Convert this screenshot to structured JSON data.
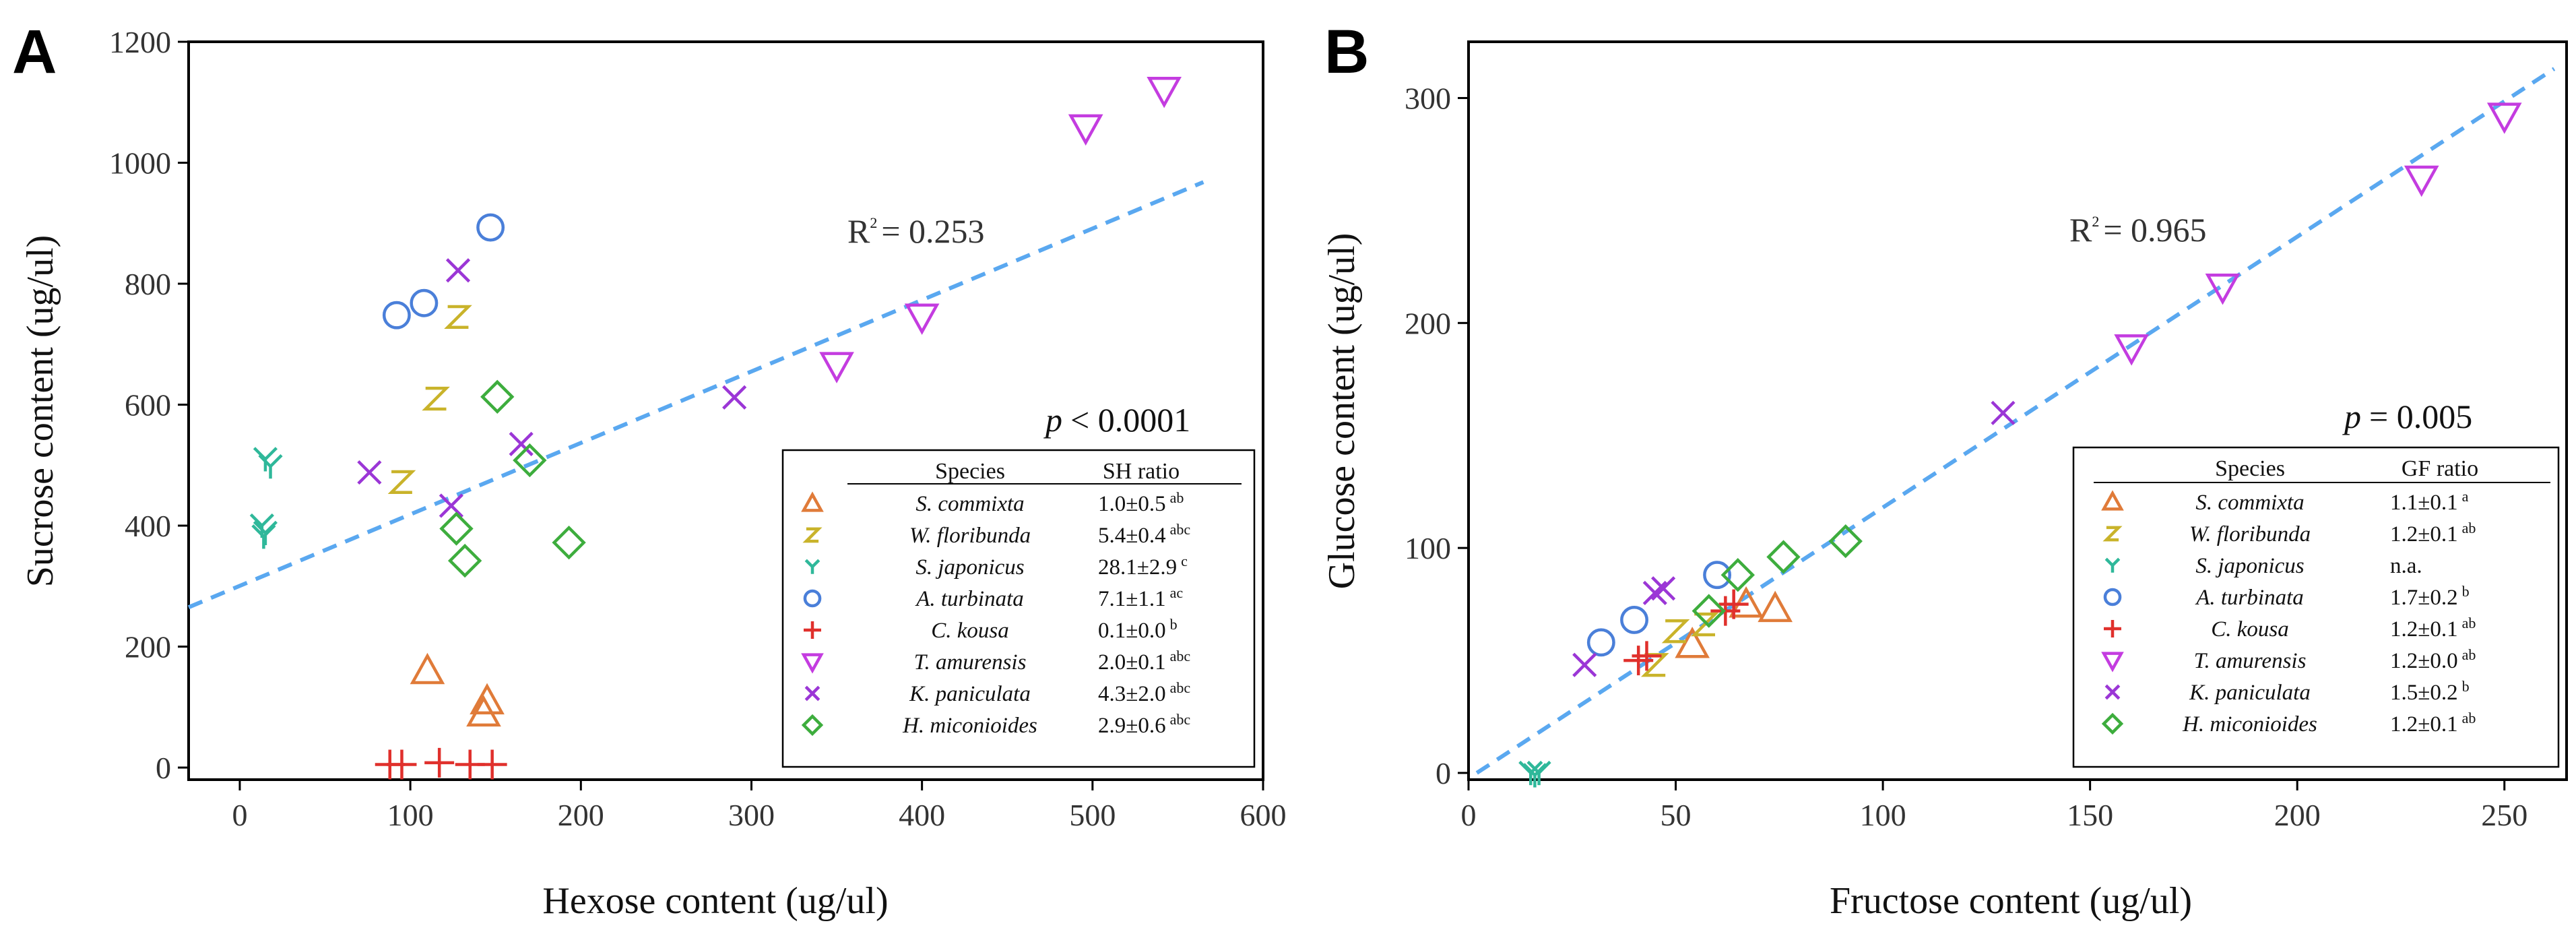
{
  "chart_data": [
    {
      "type": "scatter",
      "panel_label": "A",
      "xlabel": "Hexose content (ug/ul)",
      "ylabel": "Sucrose content (ug/ul)",
      "xlim": [
        -30,
        600
      ],
      "ylim": [
        -20,
        1200
      ],
      "xticks": [
        0,
        100,
        200,
        300,
        400,
        500,
        600
      ],
      "yticks": [
        0,
        200,
        400,
        600,
        800,
        1000,
        1200
      ],
      "r2_label": "R",
      "r2_sup": "2",
      "r2_value": "= 0.253",
      "p_label": "p",
      "p_value": "< 0.0001",
      "trend": {
        "x0": -30,
        "y0": 265,
        "x1": 565,
        "y1": 968
      },
      "legend_headers": [
        "Species",
        "SH ratio"
      ],
      "series": [
        {
          "name": "S. commixta",
          "marker": "triangle-up",
          "color": "#E07B39",
          "ratio": "1.0±0.5",
          "sup": "ab",
          "points": [
            [
              110,
              160
            ],
            [
              145,
              110
            ],
            [
              143,
              90
            ]
          ]
        },
        {
          "name": "W. floribunda",
          "marker": "z",
          "color": "#C9B32A",
          "ratio": "5.4±0.4",
          "sup": "abc",
          "points": [
            [
              128,
              745
            ],
            [
              115,
              610
            ],
            [
              95,
              472
            ]
          ]
        },
        {
          "name": "S. japonicus",
          "marker": "y",
          "color": "#2FB89A",
          "ratio": "28.1±2.9",
          "sup": "c",
          "points": [
            [
              15,
              510
            ],
            [
              18,
              498
            ],
            [
              13,
              400
            ],
            [
              15,
              388
            ],
            [
              14,
              382
            ]
          ]
        },
        {
          "name": "A. turbinata",
          "marker": "circle",
          "color": "#4A7FD9",
          "ratio": "7.1±1.1",
          "sup": "ac",
          "points": [
            [
              92,
              748
            ],
            [
              108,
              768
            ],
            [
              147,
              893
            ]
          ]
        },
        {
          "name": "C. kousa",
          "marker": "plus",
          "color": "#E0302C",
          "ratio": "0.1±0.0",
          "sup": "b",
          "points": [
            [
              88,
              5
            ],
            [
              95,
              5
            ],
            [
              117,
              8
            ],
            [
              135,
              5
            ],
            [
              148,
              5
            ]
          ]
        },
        {
          "name": "T. amurensis",
          "marker": "triangle-down",
          "color": "#C43CE0",
          "ratio": "2.0±0.1",
          "sup": "abc",
          "points": [
            [
              542,
              1120
            ],
            [
              496,
              1058
            ],
            [
              400,
              745
            ],
            [
              350,
              665
            ]
          ]
        },
        {
          "name": "K. paniculata",
          "marker": "x",
          "color": "#9B36D6",
          "ratio": "4.3±2.0",
          "sup": "abc",
          "points": [
            [
              128,
              822
            ],
            [
              290,
              612
            ],
            [
              165,
              535
            ],
            [
              76,
              488
            ],
            [
              124,
              433
            ]
          ]
        },
        {
          "name": "H. miconioides",
          "marker": "diamond",
          "color": "#3DAD3D",
          "ratio": "2.9±0.6",
          "sup": "abc",
          "points": [
            [
              151,
              613
            ],
            [
              170,
              508
            ],
            [
              127,
              395
            ],
            [
              132,
              342
            ],
            [
              193,
              372
            ]
          ]
        }
      ]
    },
    {
      "type": "scatter",
      "panel_label": "B",
      "xlabel": "Fructose content (ug/ul)",
      "ylabel": "Glucose content (ug/ul)",
      "xlim": [
        0,
        265
      ],
      "ylim": [
        -3,
        325
      ],
      "xticks": [
        0,
        50,
        100,
        150,
        200,
        250
      ],
      "yticks": [
        0,
        100,
        200,
        300
      ],
      "r2_label": "R",
      "r2_sup": "2",
      "r2_value": "= 0.965",
      "p_label": "p",
      "p_value": "= 0.005",
      "trend": {
        "x0": 2,
        "y0": 0,
        "x1": 262,
        "y1": 313
      },
      "legend_headers": [
        "Species",
        "GF ratio"
      ],
      "series": [
        {
          "name": "S. commixta",
          "marker": "triangle-up",
          "color": "#E07B39",
          "ratio": "1.1±0.1",
          "sup": "a",
          "points": [
            [
              54,
              57
            ],
            [
              67,
              75
            ],
            [
              74,
              73
            ]
          ]
        },
        {
          "name": "W. floribunda",
          "marker": "z",
          "color": "#C9B32A",
          "ratio": "1.2±0.1",
          "sup": "ab",
          "points": [
            [
              45,
              48
            ],
            [
              50,
              63
            ],
            [
              57,
              66
            ]
          ]
        },
        {
          "name": "S. japonicus",
          "marker": "y",
          "color": "#2FB89A",
          "ratio": "n.a.",
          "sup": "",
          "points": [
            [
              15,
              0
            ],
            [
              17,
              0
            ],
            [
              16,
              -1
            ]
          ]
        },
        {
          "name": "A. turbinata",
          "marker": "circle",
          "color": "#4A7FD9",
          "ratio": "1.7±0.2",
          "sup": "b",
          "points": [
            [
              32,
              58
            ],
            [
              40,
              68
            ],
            [
              60,
              88
            ]
          ]
        },
        {
          "name": "C. kousa",
          "marker": "plus",
          "color": "#E0302C",
          "ratio": "1.2±0.1",
          "sup": "ab",
          "points": [
            [
              41,
              50
            ],
            [
              43,
              52
            ],
            [
              62,
              72
            ],
            [
              64,
              75
            ]
          ]
        },
        {
          "name": "T. amurensis",
          "marker": "triangle-down",
          "color": "#C43CE0",
          "ratio": "1.2±0.0",
          "sup": "ab",
          "points": [
            [
              250,
              292
            ],
            [
              230,
              264
            ],
            [
              182,
              216
            ],
            [
              160,
              189
            ]
          ]
        },
        {
          "name": "K. paniculata",
          "marker": "x",
          "color": "#9B36D6",
          "ratio": "1.5±0.2",
          "sup": "b",
          "points": [
            [
              28,
              48
            ],
            [
              45,
              80
            ],
            [
              47,
              82
            ],
            [
              129,
              160
            ]
          ]
        },
        {
          "name": "H. miconioides",
          "marker": "diamond",
          "color": "#3DAD3D",
          "ratio": "1.2±0.1",
          "sup": "ab",
          "points": [
            [
              91,
              103
            ],
            [
              76,
              96
            ],
            [
              65,
              88
            ],
            [
              58,
              72
            ]
          ]
        }
      ]
    }
  ]
}
